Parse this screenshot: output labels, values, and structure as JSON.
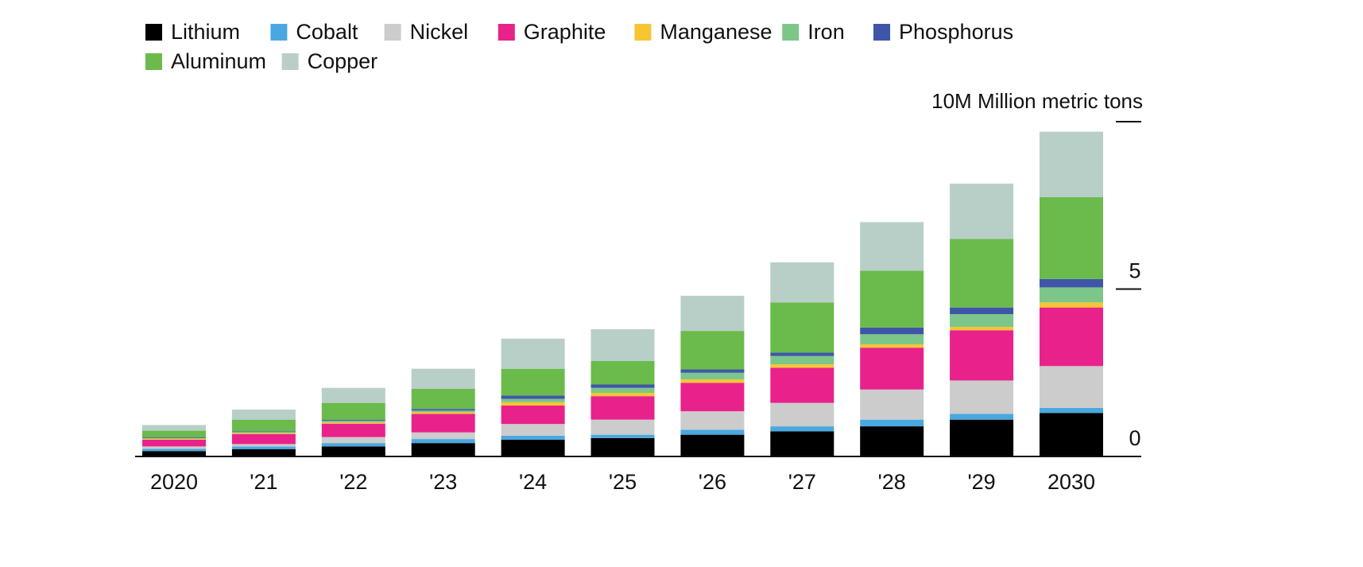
{
  "chart_data": {
    "type": "bar",
    "stacked": true,
    "title": "",
    "unit_label": "10M Million metric tons",
    "xlabel": "",
    "ylabel": "Million metric tons",
    "ylim": [
      0,
      10
    ],
    "yticks": [
      {
        "value": 10,
        "label": ""
      },
      {
        "value": 5,
        "label": "5"
      },
      {
        "value": 0,
        "label": "0"
      }
    ],
    "legend_position": "top-left",
    "categories": [
      "2020",
      "'21",
      "'22",
      "'23",
      "'24",
      "'25",
      "'26",
      "'27",
      "'28",
      "'29",
      "2030"
    ],
    "series": [
      {
        "name": "Lithium",
        "color": "#000000",
        "values": [
          0.16,
          0.22,
          0.3,
          0.4,
          0.5,
          0.55,
          0.65,
          0.75,
          0.9,
          1.1,
          1.3
        ]
      },
      {
        "name": "Cobalt",
        "color": "#4aa8e0",
        "values": [
          0.07,
          0.08,
          0.1,
          0.12,
          0.12,
          0.1,
          0.15,
          0.15,
          0.2,
          0.17,
          0.15
        ]
      },
      {
        "name": "Nickel",
        "color": "#cccccc",
        "values": [
          0.07,
          0.07,
          0.18,
          0.2,
          0.35,
          0.45,
          0.55,
          0.7,
          0.9,
          1.0,
          1.25
        ]
      },
      {
        "name": "Graphite",
        "color": "#e8228a",
        "values": [
          0.2,
          0.3,
          0.4,
          0.55,
          0.55,
          0.7,
          0.85,
          1.05,
          1.25,
          1.5,
          1.75
        ]
      },
      {
        "name": "Manganese",
        "color": "#f7c531",
        "values": [
          0.03,
          0.03,
          0.04,
          0.05,
          0.1,
          0.1,
          0.1,
          0.1,
          0.1,
          0.1,
          0.15
        ]
      },
      {
        "name": "Iron",
        "color": "#7cc68a",
        "values": [
          0.02,
          0.03,
          0.05,
          0.05,
          0.1,
          0.15,
          0.2,
          0.25,
          0.3,
          0.38,
          0.45
        ]
      },
      {
        "name": "Phosphorus",
        "color": "#3f56a8",
        "values": [
          0.02,
          0.02,
          0.03,
          0.05,
          0.1,
          0.1,
          0.1,
          0.1,
          0.2,
          0.2,
          0.25
        ]
      },
      {
        "name": "Aluminum",
        "color": "#6abb4b",
        "values": [
          0.2,
          0.35,
          0.5,
          0.6,
          0.8,
          0.7,
          1.15,
          1.5,
          1.7,
          2.05,
          2.45
        ]
      },
      {
        "name": "Copper",
        "color": "#b8cfc8",
        "values": [
          0.17,
          0.3,
          0.45,
          0.6,
          0.9,
          0.95,
          1.05,
          1.2,
          1.45,
          1.65,
          1.95
        ]
      }
    ]
  }
}
